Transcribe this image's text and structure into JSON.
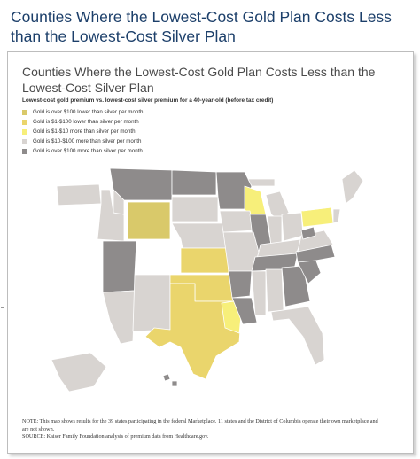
{
  "header": {
    "title": "Counties Where the Lowest-Cost Gold Plan Costs Less than the Lowest-Cost Silver Plan"
  },
  "figure": {
    "title": "Counties Where the Lowest-Cost Gold Plan Costs Less than the Lowest-Cost Silver Plan",
    "legend_title": "Lowest-cost gold premium vs. lowest-cost silver premium for a 40-year-old (before tax credit)",
    "legend": [
      {
        "label": "Gold is over $100 lower than silver per month",
        "color": "#d9c96a"
      },
      {
        "label": "Gold is $1-$100 lower than silver per month",
        "color": "#ead56c"
      },
      {
        "label": "Gold is $1-$10 more than silver per month",
        "color": "#f7ef7a"
      },
      {
        "label": "Gold is $10-$100 more than silver per month",
        "color": "#d8d4d1"
      },
      {
        "label": "Gold is over $100 more than silver per month",
        "color": "#8e8b8b"
      }
    ]
  },
  "map": {
    "not_shown_color": "#ffffff",
    "border_color": "#ffffff"
  },
  "note": {
    "line1": "NOTE: This map shows results for the 39 states participating in the federal Marketplace. 11 states and the District of Columbia operate their own marketplace and",
    "line2": "are not shown.",
    "source": "SOURCE: Kaiser Family Foundation analysis of premium data from Healthcare.gov."
  }
}
